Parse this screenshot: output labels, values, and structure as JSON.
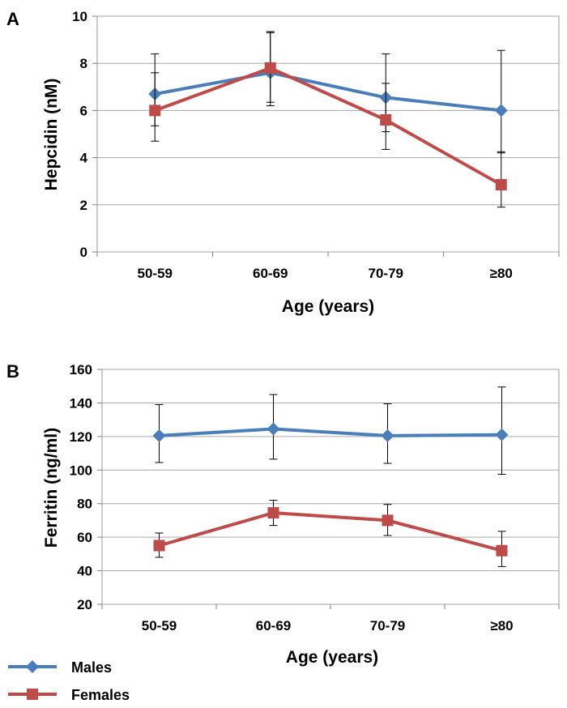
{
  "panels": [
    {
      "label": "A",
      "chart_data": {
        "type": "line",
        "title": "",
        "xlabel": "Age (years)",
        "ylabel": "Hepcidin (nM)",
        "categories": [
          "50-59",
          "60-69",
          "70-79",
          "≥80"
        ],
        "ylim": [
          0,
          10
        ],
        "yticks": [
          0,
          2,
          4,
          6,
          8,
          10
        ],
        "series": [
          {
            "name": "Males",
            "color": "#4a7ebb",
            "marker": "diamond",
            "values": [
              6.7,
              7.6,
              6.55,
              6.0
            ],
            "err_low": [
              5.35,
              6.35,
              5.1,
              4.2
            ],
            "err_high": [
              8.4,
              9.3,
              8.4,
              8.55
            ]
          },
          {
            "name": "Females",
            "color": "#be4b48",
            "marker": "square",
            "values": [
              6.0,
              7.8,
              5.6,
              2.85
            ],
            "err_low": [
              4.7,
              6.2,
              4.35,
              1.9
            ],
            "err_high": [
              7.6,
              9.35,
              7.15,
              4.25
            ]
          }
        ]
      }
    },
    {
      "label": "B",
      "chart_data": {
        "type": "line",
        "title": "",
        "xlabel": "Age (years)",
        "ylabel": "Ferritin (ng/ml)",
        "categories": [
          "50-59",
          "60-69",
          "70-79",
          "≥80"
        ],
        "ylim": [
          20,
          160
        ],
        "yticks": [
          20,
          40,
          60,
          80,
          100,
          120,
          140,
          160
        ],
        "series": [
          {
            "name": "Males",
            "color": "#4a7ebb",
            "marker": "diamond",
            "values": [
              120.5,
              124.5,
              120.5,
              121
            ],
            "err_low": [
              104.5,
              106.5,
              104,
              97.5
            ],
            "err_high": [
              139,
              145,
              139.5,
              149.5
            ]
          },
          {
            "name": "Females",
            "color": "#be4b48",
            "marker": "square",
            "values": [
              55,
              74.5,
              70,
              52
            ],
            "err_low": [
              48,
              67,
              61,
              42.5
            ],
            "err_high": [
              62.5,
              82,
              79.5,
              63.5
            ]
          }
        ]
      }
    }
  ],
  "legend": [
    {
      "name": "Males",
      "color": "#4a7ebb",
      "marker": "diamond"
    },
    {
      "name": "Females",
      "color": "#be4b48",
      "marker": "square"
    }
  ]
}
